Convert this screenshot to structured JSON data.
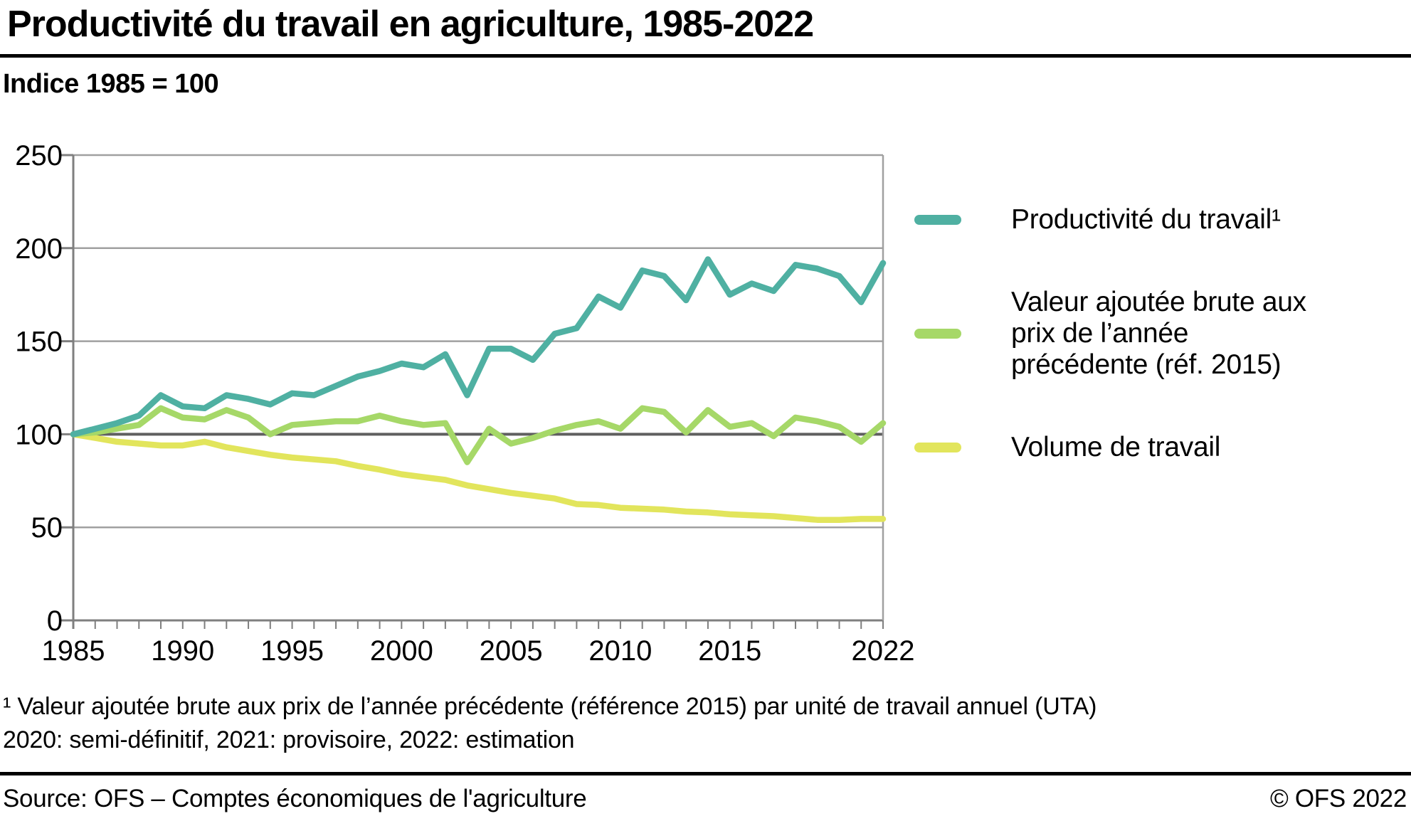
{
  "title": "Productivité du travail en agriculture, 1985-2022",
  "subtitle": "Indice 1985 = 100",
  "legend": {
    "items": [
      {
        "id": "productivite-du-travail",
        "label": "Productivité du travail¹",
        "label_lines": [
          "Productivité du travail¹"
        ],
        "color": "#4FB0A2"
      },
      {
        "id": "valeur-ajoutee-brute",
        "label": "Valeur ajoutée brute aux prix de l’année précédente (réf. 2015)",
        "label_lines": [
          "Valeur ajoutée brute aux",
          "prix de l’année",
          "précédente (réf. 2015)"
        ],
        "color": "#A6D868"
      },
      {
        "id": "volume-de-travail",
        "label": "Volume de travail",
        "label_lines": [
          "Volume de travail"
        ],
        "color": "#E2E55C"
      }
    ]
  },
  "footnotes": [
    "¹  Valeur ajoutée brute aux prix de l’année précédente (référence 2015) par unité de travail annuel (UTA)",
    "2020: semi-définitif, 2021: provisoire, 2022: estimation"
  ],
  "footer": {
    "source": "Source: OFS – Comptes économiques de l'agriculture",
    "copyright": "© OFS 2022"
  },
  "chart_data": {
    "type": "line",
    "title": "Productivité du travail en agriculture, 1985-2022",
    "subtitle_ylabel": "Indice 1985 = 100",
    "ylim": [
      0,
      250
    ],
    "y_ticks": [
      0,
      50,
      100,
      150,
      200,
      250
    ],
    "emphasized_gridline": 100,
    "grid": true,
    "legend_position": "right",
    "x_tick_labels": [
      1985,
      1990,
      1995,
      2000,
      2005,
      2010,
      2015,
      2022
    ],
    "x": [
      1985,
      1986,
      1987,
      1988,
      1989,
      1990,
      1991,
      1992,
      1993,
      1994,
      1995,
      1996,
      1997,
      1998,
      1999,
      2000,
      2001,
      2002,
      2003,
      2004,
      2005,
      2006,
      2007,
      2008,
      2009,
      2010,
      2011,
      2012,
      2013,
      2014,
      2015,
      2016,
      2017,
      2018,
      2019,
      2020,
      2021,
      2022
    ],
    "series": [
      {
        "id": "productivite-du-travail",
        "name": "Productivité du travail¹",
        "color": "#4FB0A2",
        "values": [
          100,
          103,
          106,
          110,
          121,
          115,
          114,
          121,
          119,
          116,
          122,
          121,
          126,
          131,
          134,
          138,
          136,
          143,
          121,
          146,
          146,
          140,
          154,
          157,
          174,
          168,
          188,
          185,
          172,
          194,
          175,
          181,
          177,
          191,
          189,
          185,
          171,
          192
        ]
      },
      {
        "id": "valeur-ajoutee-brute",
        "name": "Valeur ajoutée brute aux prix de l’année précédente (réf. 2015)",
        "color": "#A6D868",
        "values": [
          100,
          101,
          103,
          105,
          114,
          109,
          108,
          113,
          109,
          100,
          105,
          106,
          107,
          107,
          110,
          107,
          105,
          106,
          85,
          103,
          95,
          98,
          102,
          105,
          107,
          103,
          114,
          112,
          101,
          113,
          104,
          106,
          99,
          109,
          107,
          104,
          96,
          106
        ]
      },
      {
        "id": "volume-de-travail",
        "name": "Volume de travail",
        "color": "#E2E55C",
        "values": [
          100,
          98,
          96,
          95,
          94,
          94,
          96,
          93,
          91,
          89,
          87.5,
          86.5,
          85.5,
          83,
          81,
          78.5,
          77,
          75.5,
          72.5,
          70.5,
          68.5,
          67,
          65.5,
          62.5,
          62,
          60.5,
          60,
          59.5,
          58.5,
          58,
          57,
          56.5,
          56,
          55,
          54,
          54,
          54.5,
          54.5
        ]
      }
    ],
    "axis_colors": {
      "gridline": "#a0a0a0",
      "emphasized": "#5f5f5f",
      "axis": "#7f7f7f"
    }
  }
}
